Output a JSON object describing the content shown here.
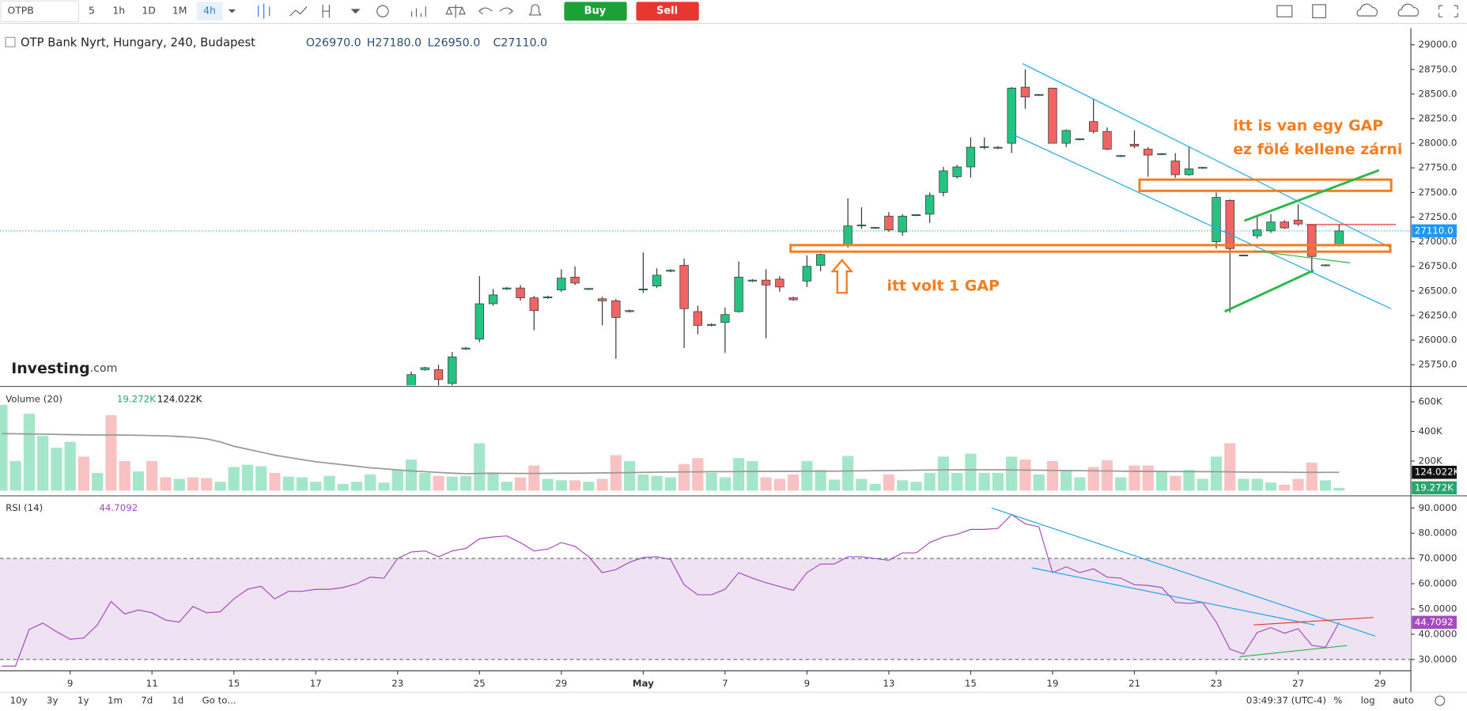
{
  "toolbar": {
    "symbol": "OTPB",
    "intervals": [
      "5",
      "1h",
      "1D",
      "1M",
      "4h"
    ],
    "buy": "Buy",
    "sell": "Sell"
  },
  "logo": {
    "brand": "Investing",
    "suffix": ".com"
  },
  "annotations": [
    "itt volt 1 GAP",
    "itt is van egy GAP",
    "ez fölé kellene zárni"
  ],
  "footer": {
    "ranges": [
      "10y",
      "3y",
      "1y",
      "1m",
      "7d",
      "1d"
    ],
    "goto": "Go to...",
    "clock": "03:49:37 (UTC-4)",
    "options": [
      "%",
      "log",
      "auto"
    ]
  },
  "chart_data": [
    {
      "type": "candlestick",
      "title": "OTP Bank Nyrt, Hungary, 240, Budapest",
      "readout": [
        "O26970.0",
        "H27180.0",
        "L26950.0",
        "C27110.0"
      ],
      "last_label": "27110.0",
      "up_color": "#26c281",
      "down_color": "#f06464",
      "last_color": "#2196f3",
      "xlim": [
        -5.14,
        98.26
      ],
      "xticks": [
        {
          "value": 0,
          "label": "9"
        },
        {
          "value": 6,
          "label": "11"
        },
        {
          "value": 12,
          "label": "15"
        },
        {
          "value": 18,
          "label": "17"
        },
        {
          "value": 24,
          "label": "23"
        },
        {
          "value": 30,
          "label": "25"
        },
        {
          "value": 36,
          "label": "29"
        },
        {
          "value": 42,
          "label": "May"
        },
        {
          "value": 48,
          "label": "7"
        },
        {
          "value": 54,
          "label": "9"
        },
        {
          "value": 60,
          "label": "13"
        },
        {
          "value": 66,
          "label": "15"
        },
        {
          "value": 72,
          "label": "19"
        },
        {
          "value": 78,
          "label": "21"
        },
        {
          "value": 84,
          "label": "23"
        },
        {
          "value": 90,
          "label": "27"
        },
        {
          "value": 96,
          "label": "29"
        }
      ],
      "ylim": [
        25540,
        29170
      ],
      "yticks": [
        {
          "value": 25750,
          "label": "25750.0"
        },
        {
          "value": 26000,
          "label": "26000.0"
        },
        {
          "value": 26250,
          "label": "26250.0"
        },
        {
          "value": 26500,
          "label": "26500.0"
        },
        {
          "value": 26750,
          "label": "26750.0"
        },
        {
          "value": 27000,
          "label": "27000.0"
        },
        {
          "value": 27250,
          "label": "27250.0"
        },
        {
          "value": 27500,
          "label": "27500.0"
        },
        {
          "value": 27750,
          "label": "27750.0"
        },
        {
          "value": 28000,
          "label": "28000.0"
        },
        {
          "value": 28250,
          "label": "28250.0"
        },
        {
          "value": 28500,
          "label": "28500.0"
        },
        {
          "value": 28750,
          "label": "28750.0"
        },
        {
          "value": 29000,
          "label": "29000.0"
        }
      ],
      "x": [
        25,
        26,
        27,
        28,
        29,
        30,
        31,
        32,
        33,
        34,
        35,
        36,
        37,
        38,
        39,
        40,
        41,
        42,
        43,
        44,
        45,
        46,
        47,
        48,
        49,
        50,
        51,
        52,
        53,
        54,
        55,
        57,
        58,
        59,
        60,
        61,
        62,
        63,
        64,
        65,
        66,
        67,
        68,
        69,
        70,
        71,
        72,
        73,
        74,
        75,
        76,
        77,
        78,
        79,
        80,
        81,
        82,
        83,
        84,
        85,
        86,
        87,
        88,
        89,
        90,
        91,
        92,
        93
      ],
      "open": [
        25450,
        25700,
        25700,
        25560,
        25910,
        26010,
        26370,
        26520,
        26530,
        26430,
        26430,
        26510,
        26640,
        26515,
        26420,
        26400,
        26290,
        26510,
        26550,
        26700,
        26760,
        26290,
        26150,
        26180,
        26290,
        26600,
        26610,
        26620,
        26430,
        26600,
        26760,
        26960,
        27160,
        27140,
        27260,
        27100,
        27265,
        27280,
        27500,
        27660,
        27760,
        27955,
        27960,
        28000,
        28570,
        28485,
        28560,
        28000,
        28035,
        28220,
        28120,
        27865,
        27990,
        27940,
        27885,
        27820,
        27680,
        27745,
        27000,
        27420,
        26855,
        27060,
        27110,
        27200,
        27220,
        27170,
        26755,
        26970
      ],
      "high": [
        25680,
        25730,
        25750,
        25880,
        25930,
        26650,
        26520,
        26540,
        26560,
        26450,
        26450,
        26720,
        26750,
        26530,
        26440,
        26420,
        26310,
        26890,
        26730,
        26720,
        26830,
        26350,
        26170,
        26330,
        26800,
        26620,
        26720,
        26650,
        26440,
        26860,
        26880,
        27440,
        27350,
        27150,
        27300,
        27280,
        27280,
        27500,
        27760,
        27780,
        28060,
        28060,
        27970,
        28570,
        28750,
        28500,
        28560,
        28140,
        28050,
        28450,
        28160,
        27880,
        28130,
        27960,
        27900,
        27900,
        27960,
        27760,
        27500,
        27430,
        26870,
        27260,
        27280,
        27220,
        27380,
        27180,
        26770,
        27180
      ],
      "low": [
        25400,
        25690,
        25520,
        25530,
        25900,
        25980,
        26350,
        26510,
        26400,
        26100,
        26420,
        26490,
        26560,
        26510,
        26150,
        25810,
        26280,
        26480,
        26530,
        26690,
        25920,
        26060,
        26140,
        25870,
        26280,
        26590,
        26020,
        26490,
        26400,
        26540,
        26700,
        26940,
        27130,
        27130,
        27100,
        27060,
        27260,
        27190,
        27460,
        27640,
        27650,
        27940,
        27940,
        27900,
        28350,
        28480,
        28000,
        27960,
        28030,
        28100,
        27930,
        27860,
        27950,
        27660,
        27880,
        27650,
        27670,
        27740,
        26930,
        26280,
        26850,
        27030,
        27090,
        27130,
        27160,
        26710,
        26750,
        26950
      ],
      "close": [
        25650,
        25720,
        25600,
        25830,
        25920,
        26370,
        26460,
        26530,
        26430,
        26300,
        26440,
        26630,
        26580,
        26525,
        26400,
        26230,
        26300,
        26520,
        26660,
        26710,
        26320,
        26150,
        26160,
        26260,
        26640,
        26610,
        26560,
        26540,
        26410,
        26750,
        26870,
        27160,
        27170,
        27145,
        27120,
        27260,
        27275,
        27470,
        27720,
        27760,
        27960,
        27965,
        27950,
        28560,
        28470,
        28495,
        28000,
        28130,
        28045,
        28120,
        27940,
        27875,
        27970,
        27880,
        27895,
        27680,
        27740,
        27755,
        27450,
        26930,
        26865,
        27120,
        27200,
        27140,
        27180,
        26850,
        26765,
        27110
      ]
    },
    {
      "type": "bar",
      "title": "Volume (20)",
      "readout": [
        "19.272K",
        "124.022K"
      ],
      "readout_colors": [
        "#26a66b",
        "#111111"
      ],
      "ylim": [
        0,
        660000
      ],
      "yticks": [
        {
          "value": 200000,
          "label": "200K"
        },
        {
          "value": 400000,
          "label": "400K"
        },
        {
          "value": 600000,
          "label": "600K"
        }
      ],
      "series": [
        {
          "color": "#a3e6c9",
          "x": [
            -5,
            -4,
            -3,
            -2,
            -1,
            0,
            2,
            5,
            8,
            11,
            12,
            13,
            14,
            16,
            17,
            18,
            19,
            20,
            21,
            22,
            23,
            24,
            25,
            26,
            28,
            29,
            30,
            31,
            32,
            35,
            36,
            38,
            41,
            42,
            43,
            44,
            47,
            48,
            49,
            50,
            54,
            55,
            56,
            57,
            58,
            59,
            61,
            62,
            63,
            64,
            65,
            66,
            67,
            68,
            69,
            71,
            73,
            74,
            77,
            80,
            82,
            83,
            84,
            86,
            87,
            88,
            92,
            93
          ],
          "values": [
            580000,
            200000,
            520000,
            370000,
            290000,
            330000,
            120000,
            130000,
            80000,
            60000,
            160000,
            175000,
            165000,
            95000,
            90000,
            60000,
            100000,
            45000,
            60000,
            110000,
            55000,
            140000,
            210000,
            120000,
            95000,
            100000,
            320000,
            120000,
            60000,
            80000,
            70000,
            60000,
            200000,
            110000,
            100000,
            90000,
            120000,
            90000,
            220000,
            200000,
            200000,
            140000,
            75000,
            235000,
            80000,
            45000,
            70000,
            60000,
            120000,
            230000,
            120000,
            250000,
            120000,
            120000,
            230000,
            110000,
            140000,
            90000,
            90000,
            130000,
            140000,
            80000,
            230000,
            80000,
            80000,
            55000,
            70000,
            19272
          ]
        },
        {
          "color": "#f9c2c2",
          "x": [
            1,
            3,
            4,
            6,
            7,
            9,
            10,
            15,
            27,
            33,
            34,
            37,
            39,
            40,
            45,
            46,
            51,
            52,
            53,
            60,
            70,
            72,
            75,
            76,
            78,
            79,
            81,
            85,
            89,
            90,
            91
          ],
          "values": [
            230000,
            510000,
            200000,
            200000,
            90000,
            90000,
            85000,
            120000,
            100000,
            90000,
            170000,
            70000,
            80000,
            240000,
            180000,
            220000,
            90000,
            80000,
            110000,
            110000,
            210000,
            200000,
            160000,
            205000,
            170000,
            170000,
            100000,
            320000,
            40000,
            80000,
            190000
          ]
        }
      ],
      "ma": {
        "color": "#9a9a9a",
        "x": [
          -5,
          -4,
          -3,
          -2,
          -1,
          0,
          1,
          2,
          3,
          4,
          5,
          6,
          7,
          8,
          9,
          10,
          11,
          12,
          13,
          14,
          15,
          16,
          17,
          18,
          19,
          20,
          21,
          22,
          23,
          24,
          25,
          26,
          27,
          28,
          29,
          30,
          31,
          32,
          33,
          34,
          35,
          36,
          37,
          38,
          39,
          40,
          41,
          42,
          43,
          44,
          45,
          46,
          47,
          48,
          49,
          50,
          51,
          52,
          53,
          54,
          55,
          56,
          57,
          58,
          59,
          60,
          61,
          62,
          63,
          64,
          65,
          66,
          67,
          68,
          69,
          70,
          71,
          72,
          73,
          74,
          75,
          76,
          77,
          78,
          79,
          80,
          81,
          82,
          83,
          84,
          85,
          86,
          87,
          88,
          89,
          90,
          91,
          92,
          93
        ],
        "values": [
          385000,
          384000,
          383000,
          382000,
          380000,
          378000,
          377000,
          376000,
          376000,
          375000,
          374000,
          372000,
          370000,
          366000,
          360000,
          350000,
          330000,
          300000,
          280000,
          260000,
          240000,
          225000,
          210000,
          195000,
          185000,
          175000,
          165000,
          155000,
          148000,
          140000,
          133000,
          128000,
          123000,
          118000,
          115000,
          116000,
          118000,
          117000,
          116000,
          116000,
          117000,
          118000,
          118000,
          119000,
          120000,
          121000,
          122000,
          124000,
          125000,
          126000,
          127000,
          127000,
          128000,
          128000,
          129000,
          130000,
          130000,
          131000,
          131000,
          132000,
          132000,
          132000,
          133000,
          134000,
          135000,
          136000,
          137000,
          138000,
          139000,
          140000,
          140000,
          141000,
          141000,
          141000,
          140000,
          139000,
          138000,
          137000,
          136000,
          135000,
          134000,
          133000,
          132000,
          131000,
          130000,
          130000,
          129000,
          129000,
          128000,
          128000,
          127000,
          126000,
          125000,
          125000,
          125000,
          124000,
          124000,
          124000,
          124022
        ]
      }
    },
    {
      "type": "line",
      "title": "RSI (14)",
      "readout": "44.7092",
      "color": "#a54bbf",
      "band_color": "#efe2f2",
      "levels": [
        30,
        70
      ],
      "ylim": [
        25.9,
        93.7
      ],
      "yticks": [
        {
          "value": 30,
          "label": "30.0000"
        },
        {
          "value": 40,
          "label": "40.0000"
        },
        {
          "value": 50,
          "label": "50.0000"
        },
        {
          "value": 60,
          "label": "60.0000"
        },
        {
          "value": 70,
          "label": "70.0000"
        },
        {
          "value": 80,
          "label": "80.0000"
        },
        {
          "value": 90,
          "label": "90.0000"
        }
      ],
      "x": [
        -5,
        -4,
        -3,
        -2,
        -1,
        0,
        1,
        2,
        3,
        4,
        5,
        6,
        7,
        8,
        9,
        10,
        11,
        12,
        13,
        14,
        15,
        16,
        17,
        18,
        19,
        20,
        21,
        22,
        23,
        24,
        25,
        26,
        27,
        28,
        29,
        30,
        31,
        32,
        33,
        34,
        35,
        36,
        37,
        38,
        39,
        40,
        41,
        42,
        43,
        44,
        45,
        46,
        47,
        48,
        49,
        50,
        51,
        52,
        53,
        54,
        55,
        56,
        57,
        58,
        59,
        60,
        61,
        62,
        63,
        64,
        65,
        66,
        67,
        68,
        69,
        70,
        71,
        72,
        73,
        74,
        75,
        76,
        77,
        78,
        79,
        80,
        81,
        82,
        83,
        84,
        85,
        86,
        87,
        88,
        89,
        90,
        91,
        92,
        93
      ],
      "values": [
        27.4,
        27.4,
        41.9,
        44.4,
        41,
        38,
        38.5,
        43.7,
        53,
        48,
        49.6,
        48.5,
        45.6,
        44.8,
        51,
        48.5,
        48.9,
        54,
        57.8,
        59,
        54,
        57,
        57,
        57.8,
        57.8,
        58.5,
        60,
        62.6,
        62.2,
        70,
        72.6,
        73,
        70.7,
        73,
        74,
        77.8,
        78.5,
        78.9,
        76.3,
        73,
        73.7,
        76.3,
        74.8,
        70.7,
        64.4,
        65.6,
        68.5,
        70.4,
        70.7,
        69.6,
        59.6,
        55.6,
        55.6,
        57.8,
        64.4,
        62.2,
        60.4,
        58.9,
        57.4,
        64.4,
        67.8,
        67.8,
        70.7,
        70.7,
        70,
        69.3,
        72.2,
        72.2,
        76.3,
        78.5,
        79.6,
        81.5,
        81.5,
        81.9,
        87.4,
        83.7,
        82.6,
        64.4,
        66.7,
        64.4,
        65.9,
        62.6,
        62.2,
        59.6,
        59.3,
        58.5,
        52.6,
        52.2,
        52.6,
        44.8,
        34.1,
        32.2,
        40.7,
        42.6,
        40.4,
        42.2,
        35.6,
        34.8,
        44.7092
      ]
    }
  ]
}
